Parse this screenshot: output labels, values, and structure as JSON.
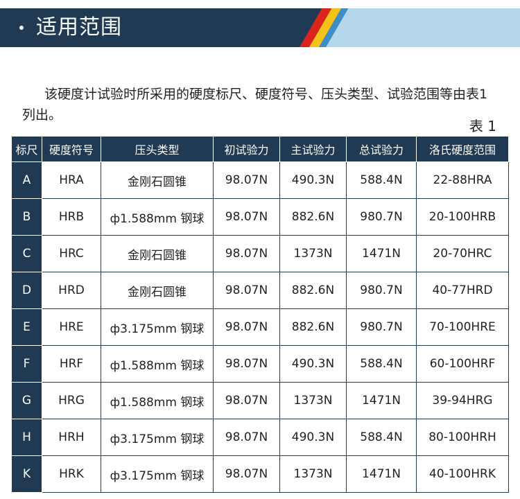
{
  "banner": {
    "title": "适用范围"
  },
  "intro": "该硬度计试验时所采用的硬度标尺、硬度符号、压头类型、试验范围等由表1列出。",
  "table_caption": "表 1",
  "colors": {
    "navy": "#1f3a52",
    "light_blue": "#b5d7ec",
    "red": "#d9251d",
    "yellow": "#f4c21a"
  },
  "table": {
    "headers": [
      "标尺",
      "硬度符号",
      "压头类型",
      "初试验力",
      "主试验力",
      "总试验力",
      "洛氏硬度范围"
    ],
    "rows": [
      [
        "A",
        "HRA",
        "金刚石圆锥",
        "98.07N",
        "490.3N",
        "588.4N",
        "22-88HRA"
      ],
      [
        "B",
        "HRB",
        "ф1.588mm 钢球",
        "98.07N",
        "882.6N",
        "980.7N",
        "20-100HRB"
      ],
      [
        "C",
        "HRC",
        "金刚石圆锥",
        "98.07N",
        "1373N",
        "1471N",
        "20-70HRC"
      ],
      [
        "D",
        "HRD",
        "金刚石圆锥",
        "98.07N",
        "882.6N",
        "980.7N",
        "40-77HRD"
      ],
      [
        "E",
        "HRE",
        "ф3.175mm 钢球",
        "98.07N",
        "882.6N",
        "980.7N",
        "70-100HRE"
      ],
      [
        "F",
        "HRF",
        "ф1.588mm 钢球",
        "98.07N",
        "490.3N",
        "588.4N",
        "60-100HRF"
      ],
      [
        "G",
        "HRG",
        "ф1.588mm 钢球",
        "98.07N",
        "1373N",
        "1471N",
        "39-94HRG"
      ],
      [
        "H",
        "HRH",
        "ф3.175mm 钢球",
        "98.07N",
        "490.3N",
        "588.4N",
        "80-100HRH"
      ],
      [
        "K",
        "HRK",
        "ф3.175mm 钢球",
        "98.07N",
        "1373N",
        "1471N",
        "40-100HRK"
      ]
    ]
  }
}
